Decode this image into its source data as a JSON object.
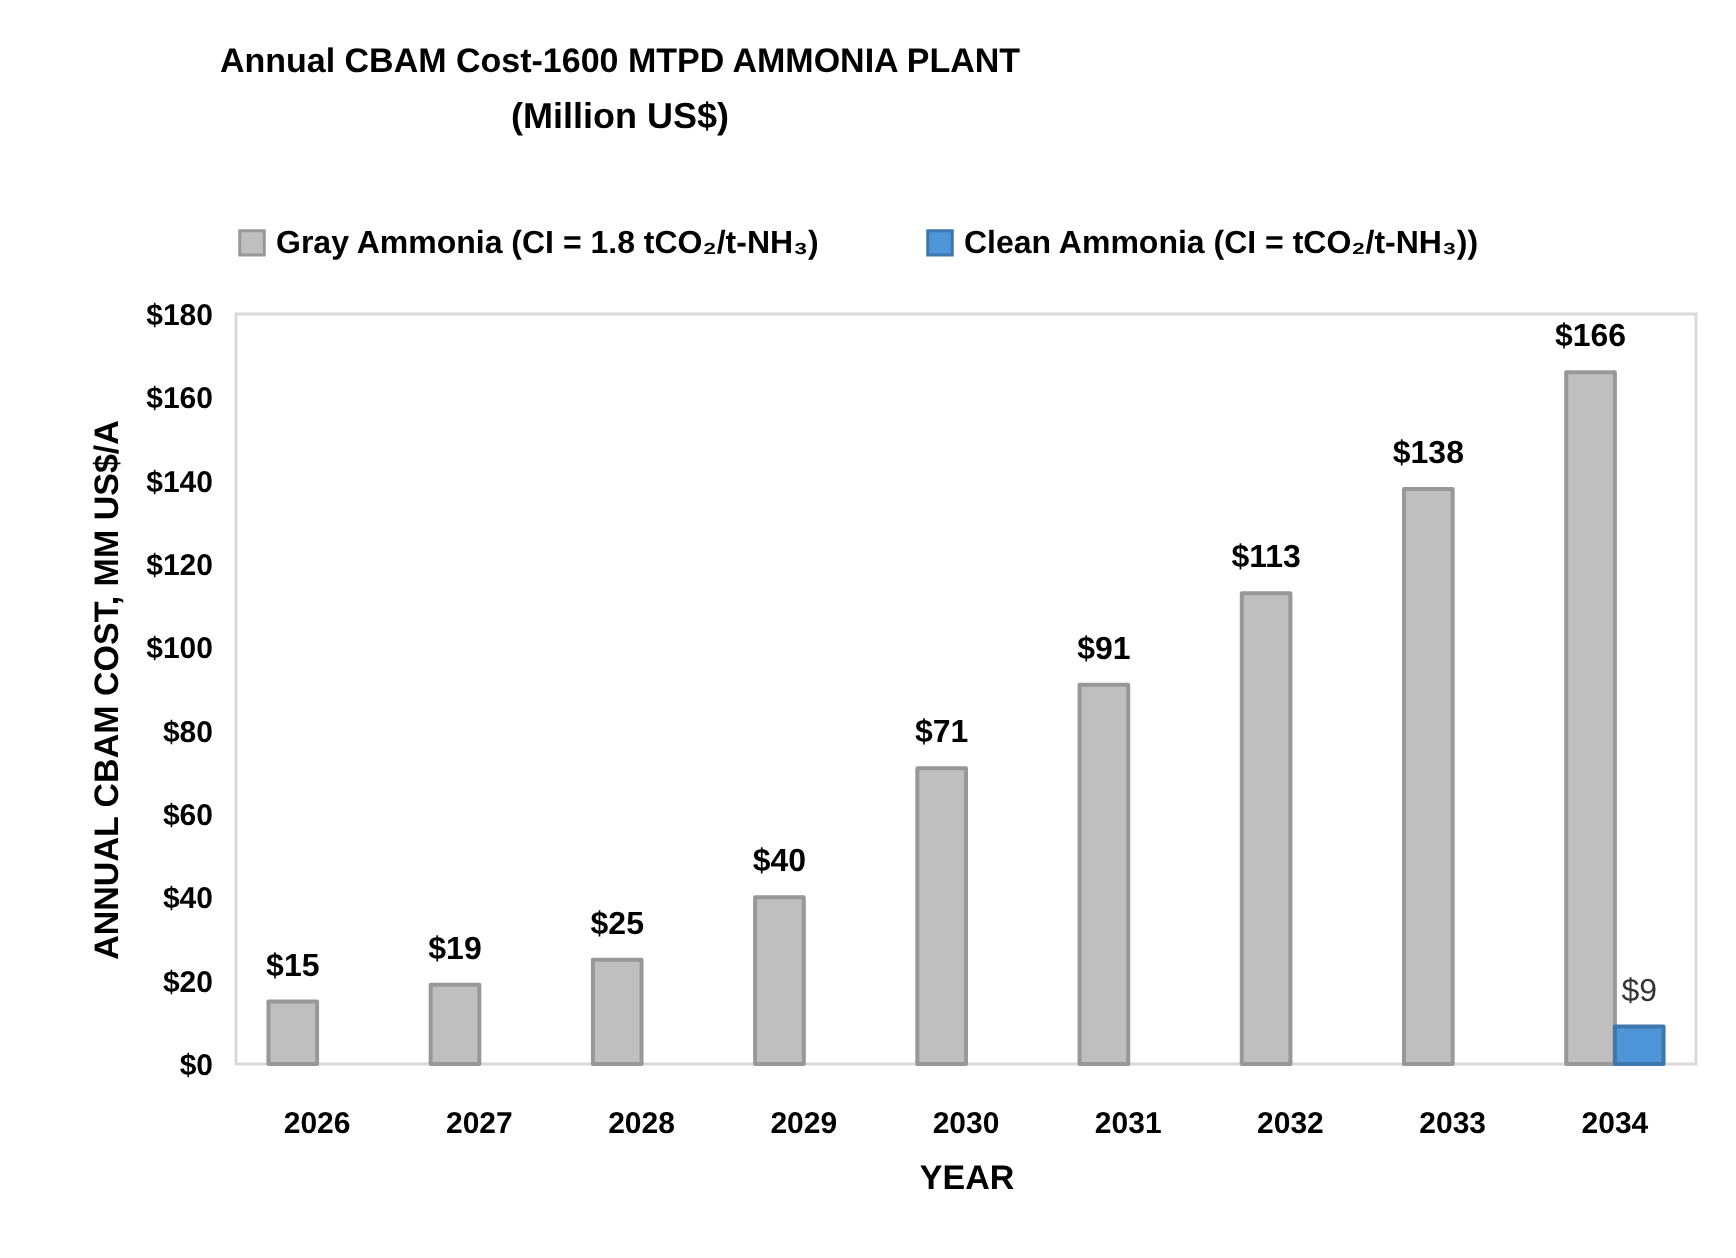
{
  "chart_data": {
    "type": "bar",
    "title": "Annual CBAM Cost-1600 MTPD AMMONIA PLANT",
    "subtitle": "(Million US$)",
    "xlabel": "YEAR",
    "ylabel": "ANNUAL CBAM COST, MM US$/A",
    "categories": [
      "2026",
      "2027",
      "2028",
      "2029",
      "2030",
      "2031",
      "2032",
      "2033",
      "2034"
    ],
    "series": [
      {
        "name": "Gray Ammonia (CI = 1.8 tCO₂/t-NH₃)",
        "color": "#bfbfbf",
        "values": [
          15,
          19,
          25,
          40,
          71,
          91,
          113,
          138,
          166
        ],
        "value_labels": [
          "$15",
          "$19",
          "$25",
          "$40",
          "$71",
          "$91",
          "$113",
          "$138",
          "$166"
        ]
      },
      {
        "name": "Clean Ammonia (CI = tCO₂/t-NH₃))",
        "color": "#4e95d9",
        "values": [
          null,
          null,
          null,
          null,
          null,
          null,
          null,
          null,
          9
        ],
        "value_labels": [
          null,
          null,
          null,
          null,
          null,
          null,
          null,
          null,
          "$9"
        ]
      }
    ],
    "ylim": [
      0,
      180
    ],
    "yticks": [
      {
        "value": 0,
        "label": "$0"
      },
      {
        "value": 20,
        "label": "$20"
      },
      {
        "value": 40,
        "label": "$40"
      },
      {
        "value": 60,
        "label": "$60"
      },
      {
        "value": 80,
        "label": "$80"
      },
      {
        "value": 100,
        "label": "$100"
      },
      {
        "value": 120,
        "label": "$120"
      },
      {
        "value": 140,
        "label": "$140"
      },
      {
        "value": 160,
        "label": "$160"
      },
      {
        "value": 180,
        "label": "$180"
      }
    ],
    "grid": false,
    "legend": "top"
  }
}
